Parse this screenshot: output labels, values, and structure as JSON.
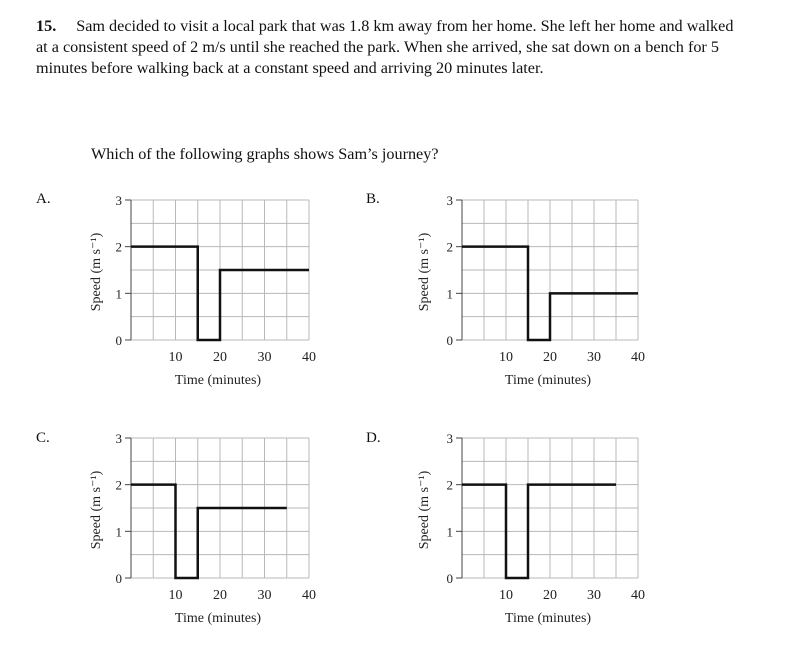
{
  "question": {
    "number": "15.",
    "text": "Sam decided to visit a local park that was 1.8 km away from her home. She left her home and walked at a consistent speed of 2 m/s until she reached the park. When she arrived, she sat down on a bench for 5 minutes before walking back at a constant speed and arriving 20 minutes later.",
    "prompt": "Which of the following graphs shows Sam’s journey?"
  },
  "axes": {
    "ylabel": "Speed (m s⁻¹)",
    "xlabel": "Time (minutes)",
    "xticks": [
      10,
      20,
      30,
      40
    ],
    "yticks": [
      0,
      1,
      2,
      3
    ],
    "xlim": [
      0,
      40
    ],
    "ylim": [
      0,
      3
    ]
  },
  "chart_data": [
    {
      "type": "line",
      "option": "A.",
      "x": [
        0,
        15,
        15,
        20,
        20,
        40
      ],
      "y": [
        2,
        2,
        0,
        0,
        1.5,
        1.5
      ]
    },
    {
      "type": "line",
      "option": "B.",
      "x": [
        0,
        15,
        15,
        20,
        20,
        40
      ],
      "y": [
        2,
        2,
        0,
        0,
        1,
        1
      ]
    },
    {
      "type": "line",
      "option": "C.",
      "x": [
        0,
        10,
        10,
        15,
        15,
        35
      ],
      "y": [
        2,
        2,
        0,
        0,
        1.5,
        1.5
      ]
    },
    {
      "type": "line",
      "option": "D.",
      "x": [
        0,
        10,
        10,
        15,
        15,
        35
      ],
      "y": [
        2,
        2,
        0,
        0,
        2,
        2
      ]
    }
  ]
}
